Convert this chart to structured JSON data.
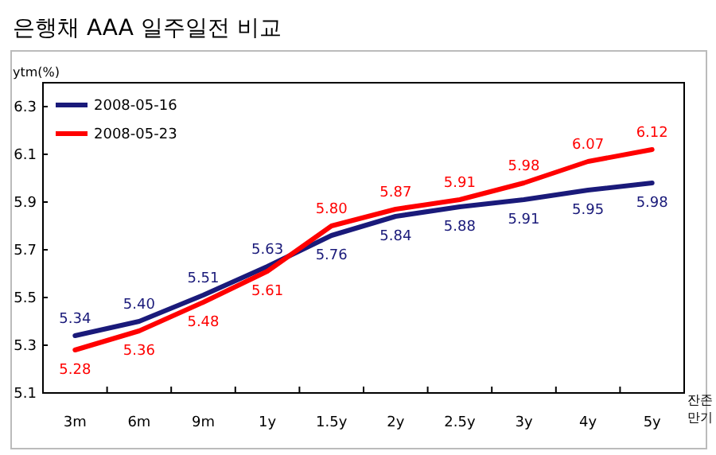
{
  "chart_data": {
    "type": "line",
    "title": "은행채 AAA 일주일전 비교",
    "ylabel": "ytm(%)",
    "xlabel": "잔존 만기",
    "categories": [
      "3m",
      "6m",
      "9m",
      "1y",
      "1.5y",
      "2y",
      "2.5y",
      "3y",
      "4y",
      "5y"
    ],
    "series": [
      {
        "name": "2008-05-16",
        "color": "#1a1a7a",
        "values": [
          5.34,
          5.4,
          5.51,
          5.63,
          5.76,
          5.84,
          5.88,
          5.91,
          5.95,
          5.98
        ],
        "value_labels": [
          "5.34",
          "5.40",
          "5.51",
          "5.63",
          "5.76",
          "5.84",
          "5.88",
          "5.91",
          "5.95",
          "5.98"
        ]
      },
      {
        "name": "2008-05-23",
        "color": "#ff0000",
        "values": [
          5.28,
          5.36,
          5.48,
          5.61,
          5.8,
          5.87,
          5.91,
          5.98,
          6.07,
          6.12
        ],
        "value_labels": [
          "5.28",
          "5.36",
          "5.48",
          "5.61",
          "5.80",
          "5.87",
          "5.91",
          "5.98",
          "6.07",
          "6.12"
        ]
      }
    ],
    "ylim": [
      5.1,
      6.4
    ],
    "yticks": [
      5.1,
      5.3,
      5.5,
      5.7,
      5.9,
      6.1,
      6.3
    ],
    "grid": false,
    "legend": "top left",
    "marker": "none",
    "line_style": "solid"
  }
}
